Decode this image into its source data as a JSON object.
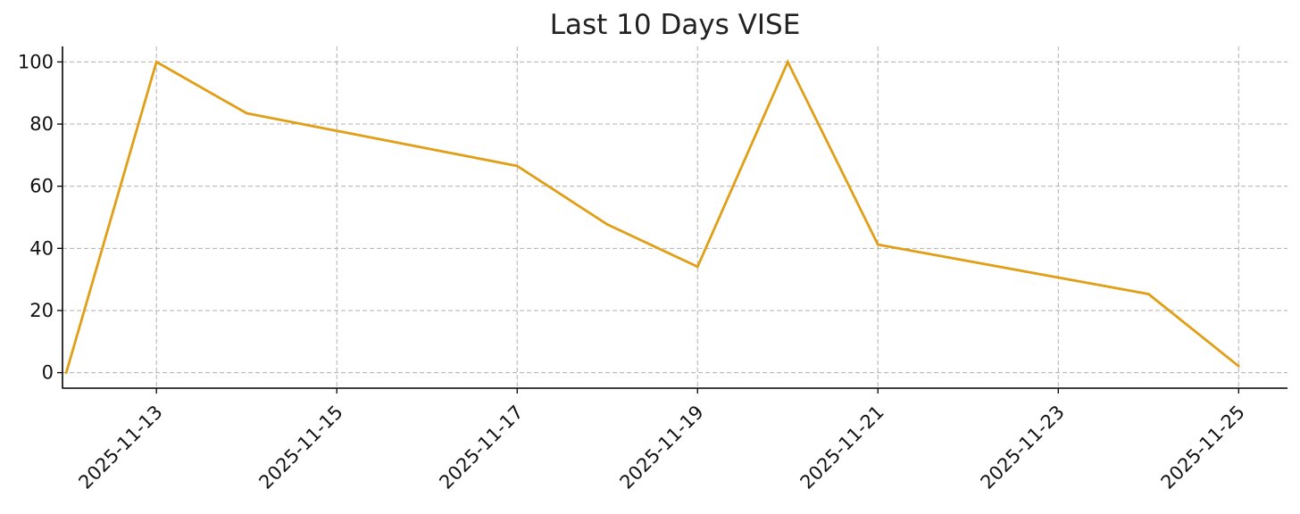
{
  "chart_data": {
    "type": "line",
    "title": "Last 10 Days VISE",
    "xlabel": "",
    "ylabel": "",
    "x": [
      "2025-11-12",
      "2025-11-13",
      "2025-11-14",
      "2025-11-15",
      "2025-11-16",
      "2025-11-17",
      "2025-11-18",
      "2025-11-19",
      "2025-11-20",
      "2025-11-21",
      "2025-11-22",
      "2025-11-23",
      "2025-11-24",
      "2025-11-25"
    ],
    "series": [
      {
        "values": [
          0,
          100,
          83.5,
          null,
          null,
          66.5,
          47.7,
          34.1,
          100,
          41.2,
          null,
          null,
          25.3,
          2.1
        ],
        "points": [
          {
            "x": "2025-11-12",
            "y": 0
          },
          {
            "x": "2025-11-13",
            "y": 100
          },
          {
            "x": "2025-11-14",
            "y": 83.5
          },
          {
            "x": "2025-11-17",
            "y": 66.5
          },
          {
            "x": "2025-11-18",
            "y": 47.7
          },
          {
            "x": "2025-11-19",
            "y": 34.1
          },
          {
            "x": "2025-11-20",
            "y": 100
          },
          {
            "x": "2025-11-21",
            "y": 41.2
          },
          {
            "x": "2025-11-24",
            "y": 25.3
          },
          {
            "x": "2025-11-25",
            "y": 2.1
          }
        ]
      }
    ],
    "xticks": [
      "2025-11-13",
      "2025-11-15",
      "2025-11-17",
      "2025-11-19",
      "2025-11-21",
      "2025-11-23",
      "2025-11-25"
    ],
    "yticks": [
      0,
      20,
      40,
      60,
      80,
      100
    ],
    "ylim": [
      -5,
      105
    ],
    "xlim": [
      "2025-11-11T23:00",
      "2025-11-25T13:00"
    ],
    "grid": true,
    "colors": {
      "line": "#E09F16",
      "grid": "#b0b0b0",
      "axis": "#000000"
    }
  }
}
